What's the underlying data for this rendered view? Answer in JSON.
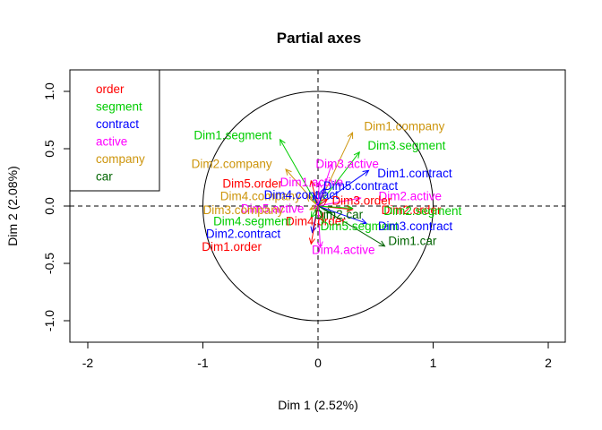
{
  "chart_data": {
    "type": "scatter",
    "title": "Partial axes",
    "xlabel": "Dim 1 (2.52%)",
    "ylabel": "Dim 2 (2.08%)",
    "xlim": [
      -2,
      2
    ],
    "ylim": [
      -1,
      1
    ],
    "x_ticks": [
      "-2",
      "-1",
      "0",
      "1",
      "2"
    ],
    "y_ticks": [
      "-1.0",
      "-0.5",
      "0.0",
      "0.5",
      "1.0"
    ],
    "grid": false,
    "reference_lines": {
      "x": 0,
      "y": 0,
      "style": "dashed"
    },
    "unit_circle": true,
    "legend_position": "top-left",
    "legend": [
      {
        "name": "order",
        "color": "#ff0000"
      },
      {
        "name": "segment",
        "color": "#00cd00"
      },
      {
        "name": "contract",
        "color": "#0000ff"
      },
      {
        "name": "active",
        "color": "#ff00ff"
      },
      {
        "name": "company",
        "color": "#cd950c"
      },
      {
        "name": "car",
        "color": "#006400"
      }
    ],
    "vectors": [
      {
        "label": "Dim1.company",
        "group": "company",
        "x": 0.3,
        "y": 0.64,
        "lx": 0.75,
        "ly": 0.7,
        "anchor": "middle"
      },
      {
        "label": "Dim1.segment",
        "group": "segment",
        "x": -0.33,
        "y": 0.58,
        "lx": -0.74,
        "ly": 0.62,
        "anchor": "middle"
      },
      {
        "label": "Dim3.segment",
        "group": "segment",
        "x": 0.36,
        "y": 0.47,
        "lx": 0.77,
        "ly": 0.53,
        "anchor": "middle"
      },
      {
        "label": "Dim2.company",
        "group": "company",
        "x": -0.28,
        "y": 0.32,
        "lx": -0.75,
        "ly": 0.37,
        "anchor": "middle"
      },
      {
        "label": "Dim3.active",
        "group": "active",
        "x": 0.12,
        "y": 0.37,
        "lx": -0.02,
        "ly": 0.37,
        "anchor": "start"
      },
      {
        "label": "Dim1.contract",
        "group": "contract",
        "x": 0.44,
        "y": 0.31,
        "lx": 0.84,
        "ly": 0.29,
        "anchor": "middle"
      },
      {
        "label": "Dim5.order",
        "group": "order",
        "x": -0.06,
        "y": 0.22,
        "lx": -0.57,
        "ly": 0.2,
        "anchor": "middle"
      },
      {
        "label": "Dim1.active",
        "group": "active",
        "x": 0.01,
        "y": 0.21,
        "lx": -0.33,
        "ly": 0.21,
        "anchor": "start"
      },
      {
        "label": "Dim5.contract",
        "group": "contract",
        "x": 0.06,
        "y": 0.16,
        "lx": 0.37,
        "ly": 0.18,
        "anchor": "middle"
      },
      {
        "label": "Dim4.company",
        "group": "company",
        "x": -0.1,
        "y": 0.09,
        "lx": -0.85,
        "ly": 0.09,
        "anchor": "start"
      },
      {
        "label": "Dim4.contract",
        "group": "contract",
        "x": -0.04,
        "y": 0.1,
        "lx": -0.47,
        "ly": 0.1,
        "anchor": "start"
      },
      {
        "label": "Dim2.active",
        "group": "active",
        "x": 0.37,
        "y": 0.07,
        "lx": 0.8,
        "ly": 0.09,
        "anchor": "middle"
      },
      {
        "label": "Dim3.order",
        "group": "order",
        "x": 0.08,
        "y": 0.06,
        "lx": 0.38,
        "ly": 0.05,
        "anchor": "middle"
      },
      {
        "label": "Dim5.active",
        "group": "active",
        "x": -0.04,
        "y": -0.02,
        "lx": -0.67,
        "ly": -0.02,
        "anchor": "start"
      },
      {
        "label": "Dim3.company",
        "group": "company",
        "x": -0.07,
        "y": -0.03,
        "lx": -1.0,
        "ly": -0.03,
        "anchor": "start"
      },
      {
        "label": "Dim2.order",
        "group": "order",
        "x": 0.3,
        "y": -0.03,
        "lx": 0.55,
        "ly": -0.03,
        "anchor": "start"
      },
      {
        "label": "Dim2.segment",
        "group": "segment",
        "x": 0.3,
        "y": -0.02,
        "lx": 0.57,
        "ly": -0.04,
        "anchor": "start"
      },
      {
        "label": "Dim2.car",
        "group": "car",
        "x": 0.12,
        "y": -0.06,
        "lx": 0.18,
        "ly": -0.07,
        "anchor": "middle"
      },
      {
        "label": "Dim4.order",
        "group": "order",
        "x": 0.04,
        "y": -0.11,
        "lx": -0.28,
        "ly": -0.13,
        "anchor": "start"
      },
      {
        "label": "Dim4.segment",
        "group": "segment",
        "x": -0.06,
        "y": -0.1,
        "lx": -0.91,
        "ly": -0.13,
        "anchor": "start"
      },
      {
        "label": "Dim5.segment",
        "group": "segment",
        "x": 0.05,
        "y": -0.14,
        "lx": 0.02,
        "ly": -0.17,
        "anchor": "start"
      },
      {
        "label": "Dim3.contract",
        "group": "contract",
        "x": 0.42,
        "y": -0.15,
        "lx": 0.52,
        "ly": -0.17,
        "anchor": "start"
      },
      {
        "label": "Dim2.contract",
        "group": "contract",
        "x": -0.05,
        "y": -0.23,
        "lx": -0.65,
        "ly": -0.24,
        "anchor": "middle"
      },
      {
        "label": "Dim1.car",
        "group": "car",
        "x": 0.58,
        "y": -0.35,
        "lx": 0.82,
        "ly": -0.3,
        "anchor": "middle"
      },
      {
        "label": "Dim1.order",
        "group": "order",
        "x": -0.06,
        "y": -0.33,
        "lx": -0.75,
        "ly": -0.35,
        "anchor": "middle"
      },
      {
        "label": "Dim4.active",
        "group": "active",
        "x": 0.02,
        "y": -0.36,
        "lx": 0.22,
        "ly": -0.38,
        "anchor": "middle"
      }
    ]
  }
}
